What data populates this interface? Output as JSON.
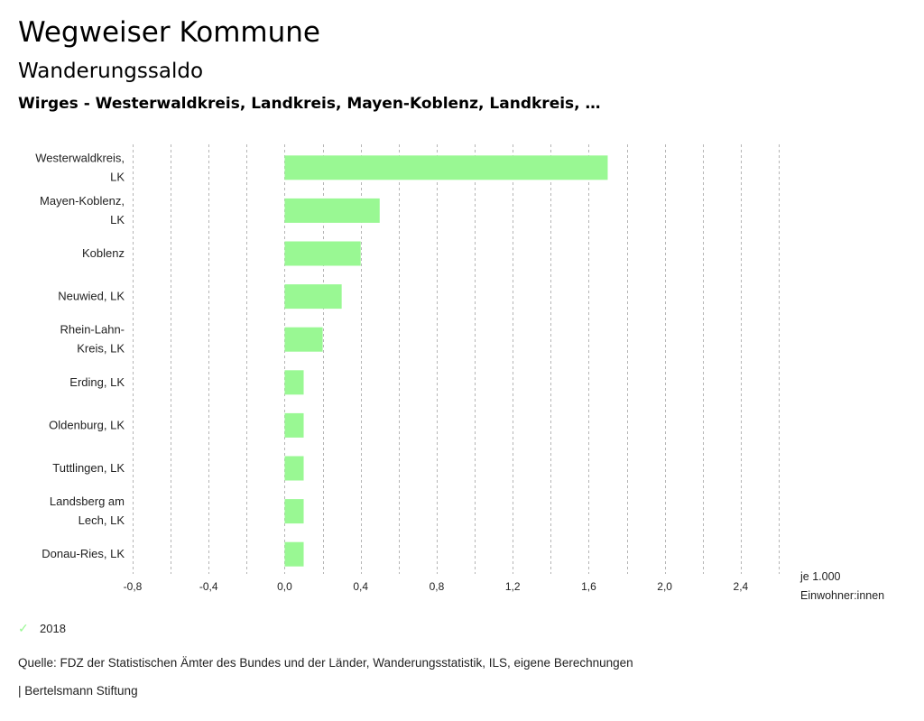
{
  "header": {
    "title": "Wegweiser Kommune",
    "subtitle": "Wanderungssaldo",
    "region": "Wirges - Westerwaldkreis, Landkreis, Mayen-Koblenz, Landkreis, …"
  },
  "chart_data": {
    "type": "bar",
    "orientation": "horizontal",
    "categories": [
      [
        "Westerwaldkreis,",
        "LK"
      ],
      [
        "Mayen-Koblenz,",
        "LK"
      ],
      [
        "Koblenz"
      ],
      [
        "Neuwied, LK"
      ],
      [
        "Rhein-Lahn-",
        "Kreis, LK"
      ],
      [
        "Erding, LK"
      ],
      [
        "Oldenburg, LK"
      ],
      [
        "Tuttlingen, LK"
      ],
      [
        "Landsberg am",
        "Lech, LK"
      ],
      [
        "Donau-Ries, LK"
      ]
    ],
    "series": [
      {
        "name": "2018",
        "color": "#99f893",
        "values": [
          1.7,
          0.5,
          0.4,
          0.3,
          0.2,
          0.1,
          0.1,
          0.1,
          0.1,
          0.1
        ]
      }
    ],
    "xlim": [
      -0.8,
      2.6
    ],
    "grid_step": 0.2,
    "tick_values": [
      -0.8,
      -0.4,
      0.0,
      0.4,
      0.8,
      1.2,
      1.6,
      2.0,
      2.4
    ],
    "tick_labels": [
      "-0,8",
      "-0,4",
      "0,0",
      "0,4",
      "0,8",
      "1,2",
      "1,6",
      "2,0",
      "2,4"
    ],
    "unit_label": [
      "je 1.000",
      "Einwohner:innen"
    ],
    "grid": true,
    "legend_position": "bottom-left"
  },
  "legend": {
    "label": "2018",
    "icon": "check-icon"
  },
  "footer": {
    "source": "Quelle: FDZ der Statistischen Ämter des Bundes und der Länder, Wanderungsstatistik, ILS, eigene Berechnungen",
    "credit": "| Bertelsmann Stiftung"
  }
}
